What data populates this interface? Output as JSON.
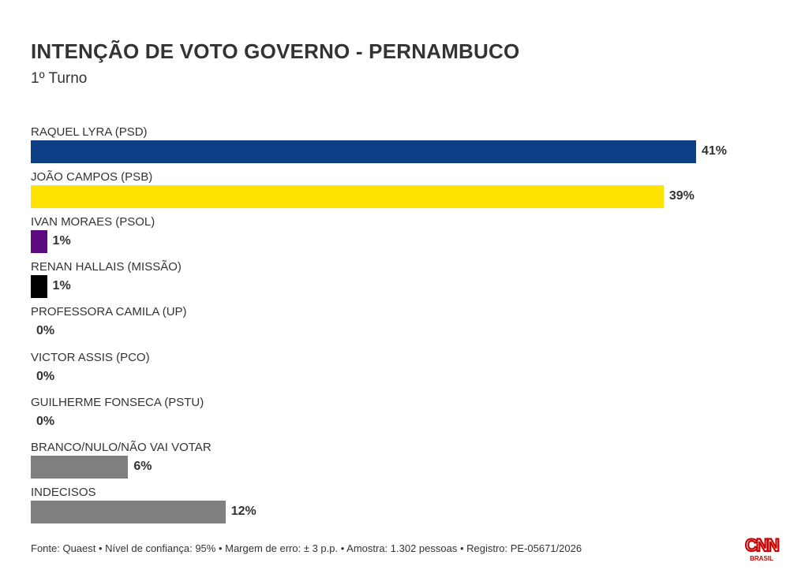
{
  "title": "INTENÇÃO DE VOTO GOVERNO - PERNAMBUCO",
  "subtitle": "1º Turno",
  "colors": {
    "psd": "#0d3f87",
    "psb": "#ffe300",
    "psol": "#5c0b80",
    "missao": "#000000",
    "other": "#7f7f7f"
  },
  "chart_data": {
    "type": "bar",
    "orientation": "horizontal",
    "categories": [
      "RAQUEL LYRA (PSD)",
      "JOÃO CAMPOS (PSB)",
      "IVAN MORAES (PSOL)",
      "RENAN HALLAIS (MISSÃO)",
      "PROFESSORA CAMILA (UP)",
      "VICTOR ASSIS (PCO)",
      "GUILHERME FONSECA (PSTU)",
      "BRANCO/NULO/NÃO VAI VOTAR",
      "INDECISOS"
    ],
    "values": [
      41,
      39,
      1,
      1,
      0,
      0,
      0,
      6,
      12
    ],
    "value_labels": [
      "41%",
      "39%",
      "1%",
      "1%",
      "0%",
      "0%",
      "0%",
      "6%",
      "12%"
    ],
    "bar_colors": [
      "#0d3f87",
      "#ffe300",
      "#5c0b80",
      "#000000",
      "#7f7f7f",
      "#7f7f7f",
      "#7f7f7f",
      "#7f7f7f",
      "#7f7f7f"
    ],
    "title": "INTENÇÃO DE VOTO GOVERNO - PERNAMBUCO",
    "xlabel": "",
    "ylabel": "",
    "grid": false
  },
  "footer": "Fonte: Quaest • Nível de confiança: 95% • Margem de erro: ± 3 p.p. • Amostra: 1.302 pessoas • Registro: PE-05671/2026",
  "logo": {
    "text": "CNN",
    "subtext": "BRASIL",
    "color": "#cc0000"
  }
}
